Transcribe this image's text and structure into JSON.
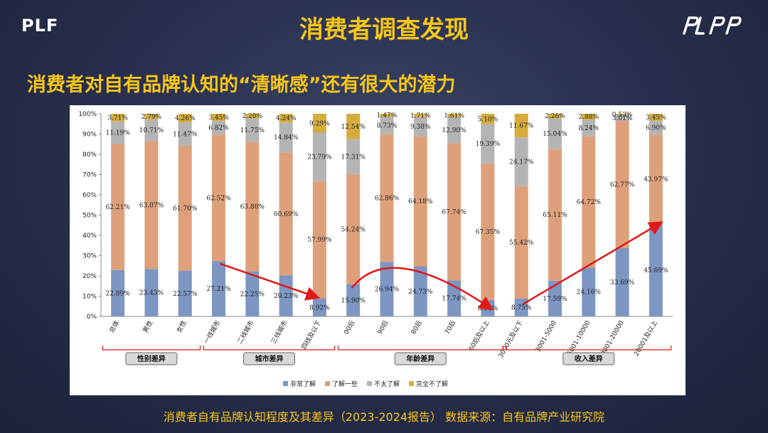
{
  "header": {
    "logo_left": "PLF",
    "logo_right": "PLPP",
    "title": "消费者调查发现"
  },
  "subtitle": "消费者对自有品牌认知的“清晰感”还有很大的潜力",
  "caption": "消费者自有品牌认知程度及其差异（2023-2024报告） 数据来源：自有品牌产业研究院",
  "colors": {
    "accent": "#f5c518",
    "series": [
      "#7d96c2",
      "#dea07a",
      "#b4b4b4",
      "#d6ad3c"
    ],
    "arrow": "#e01818"
  },
  "chart_data": {
    "type": "bar",
    "stacked": true,
    "categories": [
      "总体",
      "男性",
      "女性",
      "一线城市",
      "二线城市",
      "三线城市",
      "四线及以下",
      "00后",
      "90后",
      "80后",
      "70后",
      "60后及以上",
      "3000元及以下",
      "3001-5000",
      "5001-10000",
      "10001-20000",
      "20001及以上"
    ],
    "series": [
      {
        "name": "非常了解",
        "values": [
          22.89,
          23.43,
          22.57,
          27.21,
          22.25,
          20.23,
          8.92,
          15.9,
          26.94,
          24.73,
          17.74,
          8.16,
          8.75,
          17.59,
          24.16,
          33.69,
          45.69
        ]
      },
      {
        "name": "了解一些",
        "values": [
          62.21,
          63.07,
          61.7,
          62.52,
          63.8,
          60.69,
          57.99,
          54.24,
          62.86,
          64.18,
          67.74,
          67.35,
          55.42,
          65.11,
          64.72,
          62.77,
          43.97
        ]
      },
      {
        "name": "不太了解",
        "values": [
          11.19,
          10.71,
          11.47,
          6.82,
          11.75,
          14.84,
          23.79,
          17.31,
          8.73,
          9.38,
          12.9,
          19.39,
          24.17,
          15.04,
          8.24,
          3.01,
          6.9
        ]
      },
      {
        "name": "完全不了解",
        "values": [
          3.71,
          2.79,
          4.26,
          3.45,
          2.2,
          4.24,
          9.29,
          12.54,
          1.47,
          1.71,
          1.61,
          5.1,
          11.67,
          2.26,
          2.88,
          0.53,
          3.45
        ]
      }
    ],
    "value_labels": [
      [
        "22.89%",
        "23.43%",
        "22.57%",
        "27.21%",
        "22.25%",
        "20.23%",
        "8.92%",
        "15.90%",
        "26.94%",
        "24.73%",
        "17.74%",
        "8.16%",
        "8.75%",
        "17.59%",
        "24.16%",
        "33.69%",
        "45.69%"
      ],
      [
        "62.21%",
        "63.07%",
        "61.70%",
        "62.52%",
        "63.80%",
        "60.69%",
        "57.99%",
        "54.24%",
        "62.86%",
        "64.18%",
        "67.74%",
        "67.35%",
        "55.42%",
        "65.11%",
        "64.72%",
        "62.77%",
        "43.97%"
      ],
      [
        "11.19%",
        "10.71%",
        "11.47%",
        "6.82%",
        "11.75%",
        "14.84%",
        "23.79%",
        "17.31%",
        "8.73%",
        "9.38%",
        "12.90%",
        "19.39%",
        "24.17%",
        "15.04%",
        "8.24%",
        "3.01%",
        "6.90%"
      ],
      [
        "3.71%",
        "2.79%",
        "4.26%",
        "3.45%",
        "2.20%",
        "4.24%",
        "9.29%",
        "12.54%",
        "1.47%",
        "1.71%",
        "1.61%",
        "5.10%",
        "11.67%",
        "2.26%",
        "2.88%",
        "0.53%",
        "3.45%"
      ]
    ],
    "ylim": [
      0,
      100
    ],
    "y_ticks": [
      "0%",
      "10%",
      "20%",
      "30%",
      "40%",
      "50%",
      "60%",
      "70%",
      "80%",
      "90%",
      "100%"
    ],
    "groups": [
      {
        "label": "性别差异",
        "from": 0,
        "to": 2
      },
      {
        "label": "城市差异",
        "from": 3,
        "to": 6
      },
      {
        "label": "年龄差异",
        "from": 7,
        "to": 11
      },
      {
        "label": "收入差异",
        "from": 12,
        "to": 16
      }
    ],
    "legend_position": "bottom",
    "grid": false
  }
}
